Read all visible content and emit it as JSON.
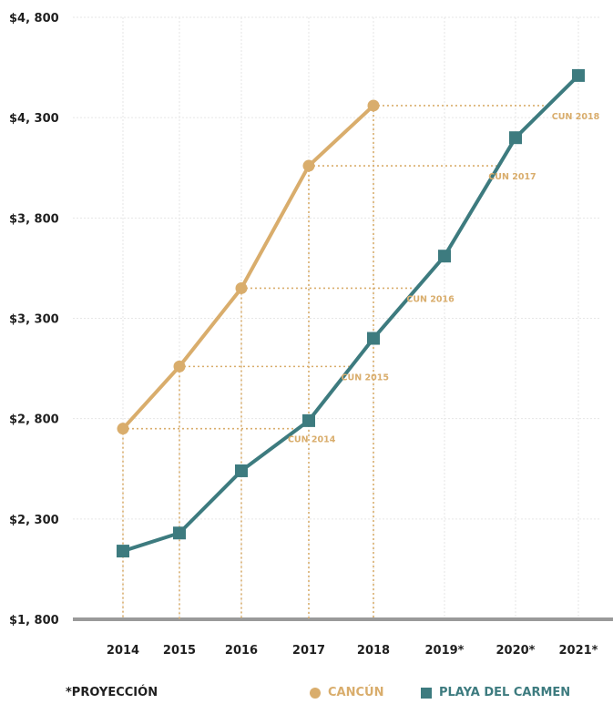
{
  "chart_data": {
    "type": "line",
    "x": [
      "2014",
      "2015",
      "2016",
      "2017",
      "2018",
      "2019*",
      "2020*",
      "2021*"
    ],
    "yticks": [
      "$1, 800",
      "$2, 300",
      "$2, 800",
      "$3, 300",
      "$3, 800",
      "$4, 300",
      "$4, 800"
    ],
    "ylim": [
      1800,
      4800
    ],
    "grid": true,
    "series": [
      {
        "name": "CANCÚN",
        "color": "#d9ad6c",
        "marker": "circle",
        "values": [
          2750,
          3060,
          3450,
          4060,
          4360,
          null,
          null,
          null
        ]
      },
      {
        "name": "PLAYA DEL CARMEN",
        "color": "#3d7b7f",
        "marker": "square",
        "values": [
          2140,
          2230,
          2540,
          2790,
          3200,
          3610,
          4200,
          4510
        ]
      }
    ],
    "annotations": [
      {
        "text": "CUN 2014",
        "ref_year": "2014",
        "value": 2750
      },
      {
        "text": "CUN 2015",
        "ref_year": "2015",
        "value": 3060
      },
      {
        "text": "CUN 2016",
        "ref_year": "2016",
        "value": 3450
      },
      {
        "text": "CUN 2017",
        "ref_year": "2017",
        "value": 4060
      },
      {
        "text": "CUN 2018",
        "ref_year": "2018",
        "value": 4360
      }
    ],
    "footnote": "*PROYECCIÓN",
    "legend": {
      "placement": "bottom-right"
    }
  }
}
